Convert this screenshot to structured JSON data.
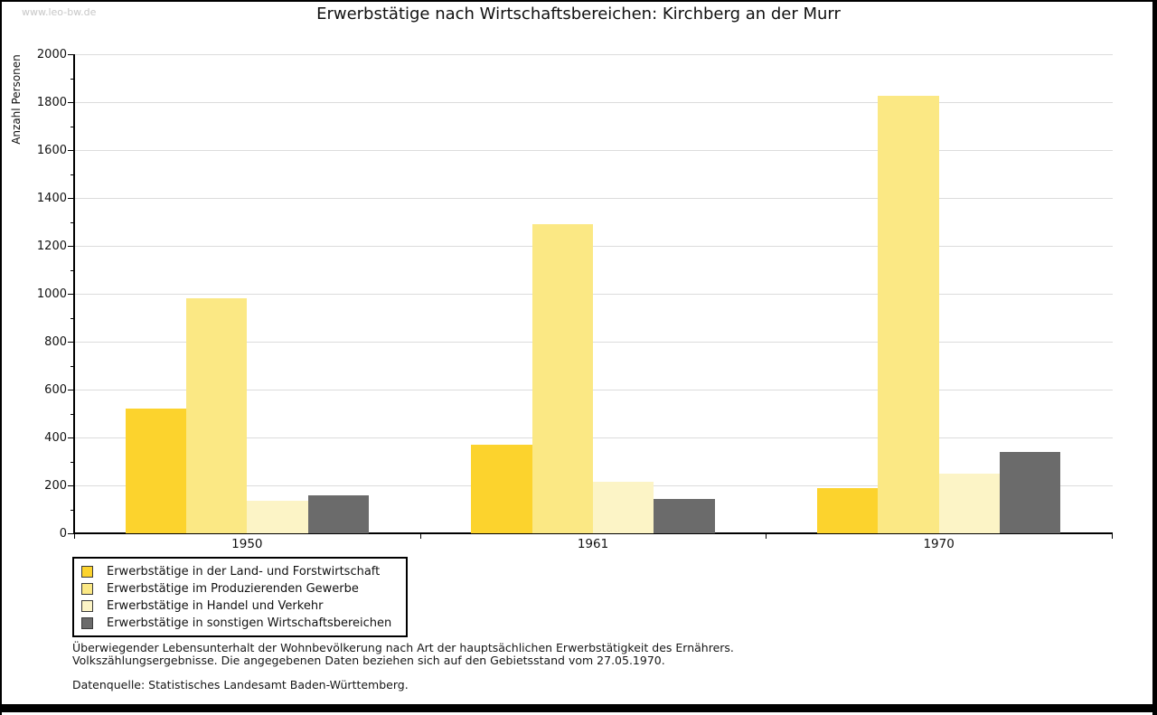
{
  "watermark": "www.leo-bw.de",
  "title": "Erwerbstätige nach Wirtschaftsbereichen: Kirchberg an der Murr",
  "chart_data": {
    "type": "bar",
    "title": "Erwerbstätige nach Wirtschaftsbereichen: Kirchberg an der Murr",
    "xlabel": "",
    "ylabel": "Anzahl Personen",
    "ylim": [
      0,
      2000
    ],
    "ytick_step": 200,
    "minor_tick_step": 100,
    "grid": true,
    "legend_position": "bottom-left",
    "categories": [
      "1950",
      "1961",
      "1970"
    ],
    "series": [
      {
        "name": "Erwerbstätige in der Land- und Forstwirtschaft",
        "color": "#fcd32d",
        "values": [
          520,
          370,
          190
        ]
      },
      {
        "name": "Erwerbstätige im Produzierenden Gewerbe",
        "color": "#fbe884",
        "values": [
          980,
          1290,
          1825
        ]
      },
      {
        "name": "Erwerbstätige in Handel und Verkehr",
        "color": "#fcf4c6",
        "values": [
          135,
          215,
          250
        ]
      },
      {
        "name": "Erwerbstätige in sonstigen Wirtschaftsbereichen",
        "color": "#6b6b6b",
        "values": [
          160,
          145,
          340
        ]
      }
    ]
  },
  "colors": {
    "axis": "#000000",
    "gridline": "#dcdcdc",
    "watermark": "#c7c7c7"
  },
  "footer": {
    "line1": "Überwiegender Lebensunterhalt der Wohnbevölkerung nach Art der hauptsächlichen Erwerbstätigkeit des Ernährers.",
    "line2": "Volkszählungsergebnisse. Die angegebenen Daten beziehen sich auf den Gebietsstand vom 27.05.1970.",
    "source": "Datenquelle: Statistisches Landesamt Baden-Württemberg."
  }
}
